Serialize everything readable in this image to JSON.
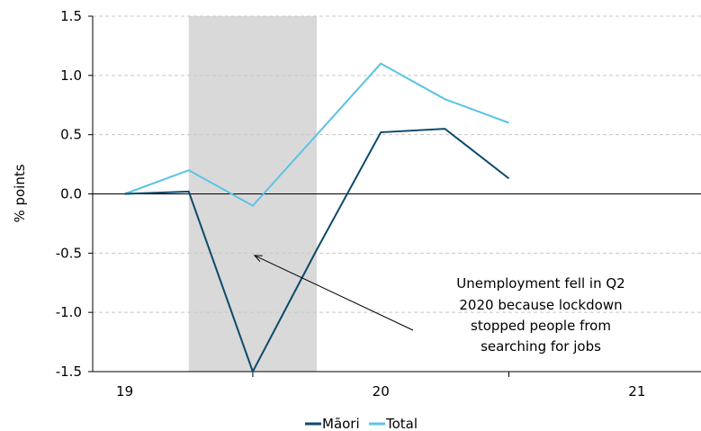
{
  "chart_data": {
    "type": "line",
    "ylabel": "% points",
    "ylim": [
      -1.5,
      1.5
    ],
    "yticks": [
      1.5,
      1.0,
      0.5,
      0.0,
      -0.5,
      -1.0,
      -1.5
    ],
    "ytick_labels": [
      "1.5",
      "1.0",
      "0.5",
      "0.0",
      "-0.5",
      "-1.0",
      "-1.5"
    ],
    "xlim": [
      2019.0,
      2021.375
    ],
    "xticks": [
      2019.125,
      2020.125,
      2021.125
    ],
    "xtick_labels": [
      "19",
      "20",
      "21"
    ],
    "x_minor_ticks": [
      2019.625,
      2020.625
    ],
    "x": [
      2019.125,
      2019.375,
      2019.625,
      2019.875,
      2020.125,
      2020.375,
      2020.625
    ],
    "series": [
      {
        "name": "Māori",
        "color": "#0d4a6b",
        "values": [
          0.0,
          0.02,
          -1.5,
          -0.47,
          0.52,
          0.55,
          0.13
        ]
      },
      {
        "name": "Total",
        "color": "#5bc3e6",
        "values": [
          0.0,
          0.2,
          -0.1,
          0.5,
          1.1,
          0.8,
          0.6
        ]
      }
    ],
    "shaded_region": {
      "x_start": 2019.375,
      "x_end": 2019.875,
      "color": "#d9d9d9"
    },
    "zero_line": true,
    "grid": "horizontal dashed",
    "annotation": {
      "lines": [
        "Unemployment fell in Q2",
        "2020 because lockdown",
        "stopped people from",
        "searching for jobs"
      ],
      "arrow_target": {
        "x": 2019.625,
        "y": -0.55
      }
    },
    "legend": {
      "placement": "bottom-center"
    }
  }
}
